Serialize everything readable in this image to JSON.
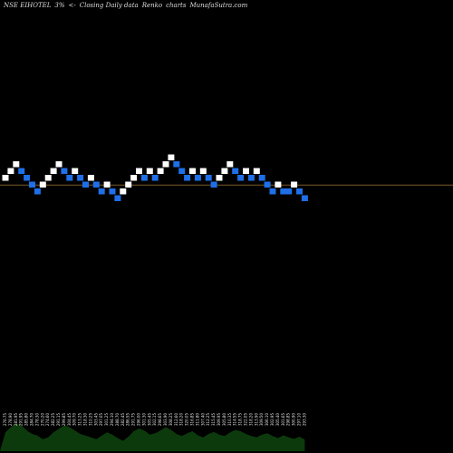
{
  "title": {
    "ticker": "NSE EIHOTEL",
    "box_size": "3%",
    "arrows": "<-",
    "basis": "Closing Daily data",
    "chart_name": "Renko",
    "charts_word": "charts",
    "site": "MunafaSutra.com"
  },
  "colors": {
    "background": "#000000",
    "up_brick": "#ffffff",
    "down_brick": "#1e6fe8",
    "last_price_line": "#7a5a2a",
    "volume_fill": "#0c3a0c"
  },
  "chart_data": {
    "type": "renko",
    "title": "NSE EIHOTEL 3% <- Closing Daily data Renko charts MunafaSutra.com",
    "bricks": [
      {
        "dir": "up",
        "level": 4
      },
      {
        "dir": "up",
        "level": 5
      },
      {
        "dir": "up",
        "level": 6
      },
      {
        "dir": "down",
        "level": 5
      },
      {
        "dir": "down",
        "level": 4
      },
      {
        "dir": "down",
        "level": 3
      },
      {
        "dir": "down",
        "level": 2
      },
      {
        "dir": "up",
        "level": 3
      },
      {
        "dir": "up",
        "level": 4
      },
      {
        "dir": "up",
        "level": 5
      },
      {
        "dir": "up",
        "level": 6
      },
      {
        "dir": "down",
        "level": 5
      },
      {
        "dir": "down",
        "level": 4
      },
      {
        "dir": "up",
        "level": 5
      },
      {
        "dir": "down",
        "level": 4
      },
      {
        "dir": "down",
        "level": 3
      },
      {
        "dir": "up",
        "level": 4
      },
      {
        "dir": "down",
        "level": 3
      },
      {
        "dir": "down",
        "level": 2
      },
      {
        "dir": "up",
        "level": 3
      },
      {
        "dir": "down",
        "level": 2
      },
      {
        "dir": "down",
        "level": 1
      },
      {
        "dir": "up",
        "level": 2
      },
      {
        "dir": "up",
        "level": 3
      },
      {
        "dir": "up",
        "level": 4
      },
      {
        "dir": "up",
        "level": 5
      },
      {
        "dir": "down",
        "level": 4
      },
      {
        "dir": "up",
        "level": 5
      },
      {
        "dir": "down",
        "level": 4
      },
      {
        "dir": "up",
        "level": 5
      },
      {
        "dir": "up",
        "level": 6
      },
      {
        "dir": "up",
        "level": 7
      },
      {
        "dir": "down",
        "level": 6
      },
      {
        "dir": "down",
        "level": 5
      },
      {
        "dir": "down",
        "level": 4
      },
      {
        "dir": "up",
        "level": 5
      },
      {
        "dir": "down",
        "level": 4
      },
      {
        "dir": "up",
        "level": 5
      },
      {
        "dir": "down",
        "level": 4
      },
      {
        "dir": "down",
        "level": 3
      },
      {
        "dir": "up",
        "level": 4
      },
      {
        "dir": "up",
        "level": 5
      },
      {
        "dir": "up",
        "level": 6
      },
      {
        "dir": "down",
        "level": 5
      },
      {
        "dir": "down",
        "level": 4
      },
      {
        "dir": "up",
        "level": 5
      },
      {
        "dir": "down",
        "level": 4
      },
      {
        "dir": "up",
        "level": 5
      },
      {
        "dir": "down",
        "level": 4
      },
      {
        "dir": "down",
        "level": 3
      },
      {
        "dir": "down",
        "level": 2
      },
      {
        "dir": "up",
        "level": 3
      },
      {
        "dir": "down",
        "level": 2
      },
      {
        "dir": "down",
        "level": 2
      },
      {
        "dir": "up",
        "level": 3
      },
      {
        "dir": "down",
        "level": 2
      },
      {
        "dir": "down",
        "level": 1
      }
    ],
    "last_price_line_level": 3,
    "volume_labels": [
      "276.75",
      "278.90",
      "281.95",
      "291.95",
      "285.80",
      "284.70",
      "278.30",
      "270.20",
      "274.60",
      "282.25",
      "291.15",
      "299.85",
      "304.45",
      "309.70",
      "313.25",
      "318.30",
      "310.25",
      "303.45",
      "297.05",
      "301.25",
      "294.10",
      "288.70",
      "282.45",
      "286.55",
      "291.75",
      "296.00",
      "301.30",
      "305.45",
      "302.15",
      "298.65",
      "303.90",
      "308.25",
      "312.60",
      "318.20",
      "320.05",
      "316.85",
      "311.80",
      "307.40",
      "312.25",
      "315.45",
      "309.95",
      "305.80",
      "310.35",
      "314.55",
      "318.75",
      "322.05",
      "318.20",
      "313.90",
      "309.50",
      "306.10",
      "302.95",
      "305.40",
      "301.65",
      "298.85",
      "300.90",
      "297.10",
      "293.30"
    ],
    "volume": [
      55,
      70,
      80,
      75,
      60,
      50,
      45,
      35,
      40,
      55,
      65,
      75,
      70,
      60,
      50,
      45,
      40,
      35,
      45,
      55,
      48,
      38,
      30,
      42,
      58,
      66,
      60,
      48,
      52,
      60,
      70,
      62,
      50,
      44,
      52,
      58,
      46,
      40,
      50,
      56,
      48,
      44,
      54,
      62,
      58,
      50,
      44,
      40,
      48,
      52,
      44,
      38,
      46,
      40,
      36,
      42,
      34
    ]
  }
}
